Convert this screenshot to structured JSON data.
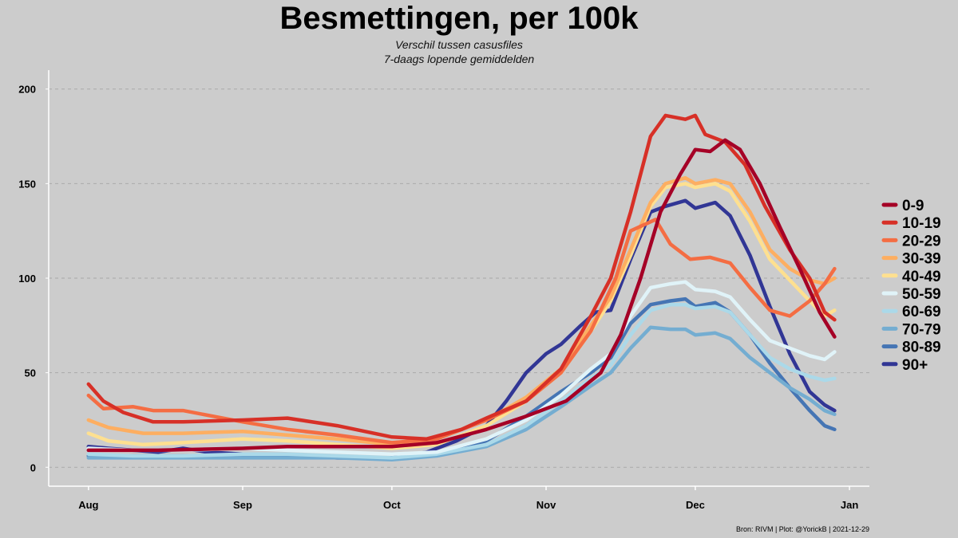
{
  "chart_data": {
    "type": "line",
    "title": "Besmettingen, per 100k",
    "subtitle": [
      "Verschil tussen casusfiles",
      "7-daags lopende gemiddelden"
    ],
    "caption": "Bron: RIVM | Plot: @YorickB  |  2021-12-29",
    "xlabel": "",
    "ylabel": "",
    "x_ticks": [
      {
        "label": "Aug",
        "date": "2021-08-01"
      },
      {
        "label": "Sep",
        "date": "2021-09-01"
      },
      {
        "label": "Oct",
        "date": "2021-10-01"
      },
      {
        "label": "Nov",
        "date": "2021-11-01"
      },
      {
        "label": "Dec",
        "date": "2021-12-01"
      },
      {
        "label": "Jan",
        "date": "2022-01-01"
      }
    ],
    "xlim": [
      "2021-07-24",
      "2022-01-05"
    ],
    "y_ticks": [
      0,
      50,
      100,
      150,
      200
    ],
    "ylim": [
      -10,
      210
    ],
    "grid": "horizontal dashed",
    "legend_position": "right",
    "series": [
      {
        "name": "0-9",
        "color": "#a50026",
        "points": [
          [
            "2021-08-01",
            9
          ],
          [
            "2021-08-15",
            9
          ],
          [
            "2021-09-01",
            10
          ],
          [
            "2021-09-10",
            11
          ],
          [
            "2021-09-20",
            11
          ],
          [
            "2021-10-01",
            11
          ],
          [
            "2021-10-10",
            13
          ],
          [
            "2021-10-20",
            20
          ],
          [
            "2021-10-28",
            27
          ],
          [
            "2021-11-05",
            35
          ],
          [
            "2021-11-12",
            50
          ],
          [
            "2021-11-16",
            70
          ],
          [
            "2021-11-20",
            100
          ],
          [
            "2021-11-24",
            135
          ],
          [
            "2021-11-28",
            155
          ],
          [
            "2021-12-01",
            168
          ],
          [
            "2021-12-04",
            167
          ],
          [
            "2021-12-07",
            173
          ],
          [
            "2021-12-10",
            168
          ],
          [
            "2021-12-14",
            150
          ],
          [
            "2021-12-18",
            127
          ],
          [
            "2021-12-22",
            105
          ],
          [
            "2021-12-26",
            82
          ],
          [
            "2021-12-29",
            69
          ]
        ]
      },
      {
        "name": "10-19",
        "color": "#d73027",
        "points": [
          [
            "2021-08-01",
            44
          ],
          [
            "2021-08-04",
            35
          ],
          [
            "2021-08-08",
            29
          ],
          [
            "2021-08-14",
            24
          ],
          [
            "2021-08-20",
            24
          ],
          [
            "2021-09-01",
            25
          ],
          [
            "2021-09-10",
            26
          ],
          [
            "2021-09-20",
            22
          ],
          [
            "2021-10-01",
            16
          ],
          [
            "2021-10-08",
            15
          ],
          [
            "2021-10-15",
            20
          ],
          [
            "2021-10-20",
            26
          ],
          [
            "2021-10-28",
            35
          ],
          [
            "2021-11-04",
            52
          ],
          [
            "2021-11-10",
            80
          ],
          [
            "2021-11-14",
            100
          ],
          [
            "2021-11-18",
            135
          ],
          [
            "2021-11-22",
            175
          ],
          [
            "2021-11-25",
            186
          ],
          [
            "2021-11-29",
            184
          ],
          [
            "2021-12-01",
            186
          ],
          [
            "2021-12-03",
            176
          ],
          [
            "2021-12-07",
            172
          ],
          [
            "2021-12-11",
            160
          ],
          [
            "2021-12-15",
            138
          ],
          [
            "2021-12-20",
            115
          ],
          [
            "2021-12-24",
            100
          ],
          [
            "2021-12-27",
            82
          ],
          [
            "2021-12-29",
            78
          ]
        ]
      },
      {
        "name": "20-29",
        "color": "#f46d43",
        "points": [
          [
            "2021-08-01",
            38
          ],
          [
            "2021-08-04",
            31
          ],
          [
            "2021-08-10",
            32
          ],
          [
            "2021-08-14",
            30
          ],
          [
            "2021-08-20",
            30
          ],
          [
            "2021-08-26",
            27
          ],
          [
            "2021-09-01",
            24
          ],
          [
            "2021-09-10",
            20
          ],
          [
            "2021-09-20",
            17
          ],
          [
            "2021-10-01",
            13
          ],
          [
            "2021-10-10",
            15
          ],
          [
            "2021-10-20",
            25
          ],
          [
            "2021-10-28",
            35
          ],
          [
            "2021-11-04",
            50
          ],
          [
            "2021-11-10",
            72
          ],
          [
            "2021-11-15",
            100
          ],
          [
            "2021-11-18",
            125
          ],
          [
            "2021-11-23",
            131
          ],
          [
            "2021-11-26",
            118
          ],
          [
            "2021-11-30",
            110
          ],
          [
            "2021-12-04",
            111
          ],
          [
            "2021-12-08",
            108
          ],
          [
            "2021-12-12",
            95
          ],
          [
            "2021-12-16",
            83
          ],
          [
            "2021-12-20",
            80
          ],
          [
            "2021-12-24",
            88
          ],
          [
            "2021-12-27",
            97
          ],
          [
            "2021-12-29",
            105
          ]
        ]
      },
      {
        "name": "30-39",
        "color": "#fdae61",
        "points": [
          [
            "2021-08-01",
            25
          ],
          [
            "2021-08-05",
            21
          ],
          [
            "2021-08-12",
            18
          ],
          [
            "2021-08-20",
            18
          ],
          [
            "2021-09-01",
            19
          ],
          [
            "2021-09-10",
            17
          ],
          [
            "2021-09-20",
            15
          ],
          [
            "2021-10-01",
            12
          ],
          [
            "2021-10-10",
            15
          ],
          [
            "2021-10-20",
            25
          ],
          [
            "2021-10-28",
            37
          ],
          [
            "2021-11-04",
            52
          ],
          [
            "2021-11-10",
            75
          ],
          [
            "2021-11-14",
            90
          ],
          [
            "2021-11-18",
            115
          ],
          [
            "2021-11-22",
            140
          ],
          [
            "2021-11-25",
            150
          ],
          [
            "2021-11-29",
            153
          ],
          [
            "2021-12-01",
            150
          ],
          [
            "2021-12-05",
            152
          ],
          [
            "2021-12-08",
            150
          ],
          [
            "2021-12-12",
            135
          ],
          [
            "2021-12-16",
            115
          ],
          [
            "2021-12-20",
            105
          ],
          [
            "2021-12-24",
            99
          ],
          [
            "2021-12-27",
            97
          ],
          [
            "2021-12-29",
            100
          ]
        ]
      },
      {
        "name": "40-49",
        "color": "#fee090",
        "points": [
          [
            "2021-08-01",
            18
          ],
          [
            "2021-08-05",
            14
          ],
          [
            "2021-08-12",
            12
          ],
          [
            "2021-08-20",
            13
          ],
          [
            "2021-09-01",
            15
          ],
          [
            "2021-09-10",
            14
          ],
          [
            "2021-09-20",
            12
          ],
          [
            "2021-10-01",
            10
          ],
          [
            "2021-10-10",
            12
          ],
          [
            "2021-10-20",
            22
          ],
          [
            "2021-10-28",
            35
          ],
          [
            "2021-11-04",
            50
          ],
          [
            "2021-11-10",
            72
          ],
          [
            "2021-11-14",
            88
          ],
          [
            "2021-11-18",
            112
          ],
          [
            "2021-11-22",
            138
          ],
          [
            "2021-11-25",
            148
          ],
          [
            "2021-11-29",
            150
          ],
          [
            "2021-12-01",
            148
          ],
          [
            "2021-12-05",
            150
          ],
          [
            "2021-12-08",
            146
          ],
          [
            "2021-12-12",
            130
          ],
          [
            "2021-12-16",
            110
          ],
          [
            "2021-12-20",
            99
          ],
          [
            "2021-12-24",
            88
          ],
          [
            "2021-12-27",
            80
          ],
          [
            "2021-12-29",
            83
          ]
        ]
      },
      {
        "name": "50-59",
        "color": "#e0f3f8",
        "points": [
          [
            "2021-08-01",
            10
          ],
          [
            "2021-08-10",
            9
          ],
          [
            "2021-08-20",
            9
          ],
          [
            "2021-09-01",
            10
          ],
          [
            "2021-09-10",
            9
          ],
          [
            "2021-09-20",
            8
          ],
          [
            "2021-10-01",
            7
          ],
          [
            "2021-10-10",
            8
          ],
          [
            "2021-10-20",
            15
          ],
          [
            "2021-10-28",
            25
          ],
          [
            "2021-11-04",
            38
          ],
          [
            "2021-11-10",
            52
          ],
          [
            "2021-11-14",
            60
          ],
          [
            "2021-11-18",
            80
          ],
          [
            "2021-11-22",
            95
          ],
          [
            "2021-11-26",
            97
          ],
          [
            "2021-11-29",
            98
          ],
          [
            "2021-12-01",
            94
          ],
          [
            "2021-12-05",
            93
          ],
          [
            "2021-12-08",
            90
          ],
          [
            "2021-12-12",
            78
          ],
          [
            "2021-12-16",
            67
          ],
          [
            "2021-12-20",
            63
          ],
          [
            "2021-12-24",
            59
          ],
          [
            "2021-12-27",
            57
          ],
          [
            "2021-12-29",
            61
          ]
        ]
      },
      {
        "name": "60-69",
        "color": "#abd9e9",
        "points": [
          [
            "2021-08-01",
            7
          ],
          [
            "2021-08-10",
            6
          ],
          [
            "2021-08-20",
            6
          ],
          [
            "2021-09-01",
            7
          ],
          [
            "2021-09-10",
            7
          ],
          [
            "2021-09-20",
            6
          ],
          [
            "2021-10-01",
            5
          ],
          [
            "2021-10-10",
            7
          ],
          [
            "2021-10-20",
            12
          ],
          [
            "2021-10-28",
            22
          ],
          [
            "2021-11-04",
            35
          ],
          [
            "2021-11-10",
            47
          ],
          [
            "2021-11-14",
            54
          ],
          [
            "2021-11-18",
            70
          ],
          [
            "2021-11-22",
            83
          ],
          [
            "2021-11-26",
            86
          ],
          [
            "2021-11-29",
            86
          ],
          [
            "2021-12-01",
            84
          ],
          [
            "2021-12-05",
            85
          ],
          [
            "2021-12-08",
            82
          ],
          [
            "2021-12-12",
            70
          ],
          [
            "2021-12-16",
            58
          ],
          [
            "2021-12-20",
            52
          ],
          [
            "2021-12-24",
            48
          ],
          [
            "2021-12-27",
            46
          ],
          [
            "2021-12-29",
            47
          ]
        ]
      },
      {
        "name": "70-79",
        "color": "#74add1",
        "points": [
          [
            "2021-08-01",
            5
          ],
          [
            "2021-08-10",
            5
          ],
          [
            "2021-08-20",
            5
          ],
          [
            "2021-09-01",
            5
          ],
          [
            "2021-09-10",
            5
          ],
          [
            "2021-09-20",
            5
          ],
          [
            "2021-10-01",
            4
          ],
          [
            "2021-10-10",
            6
          ],
          [
            "2021-10-20",
            11
          ],
          [
            "2021-10-28",
            20
          ],
          [
            "2021-11-04",
            32
          ],
          [
            "2021-11-10",
            43
          ],
          [
            "2021-11-14",
            50
          ],
          [
            "2021-11-18",
            63
          ],
          [
            "2021-11-22",
            74
          ],
          [
            "2021-11-26",
            73
          ],
          [
            "2021-11-29",
            73
          ],
          [
            "2021-12-01",
            70
          ],
          [
            "2021-12-05",
            71
          ],
          [
            "2021-12-08",
            68
          ],
          [
            "2021-12-12",
            58
          ],
          [
            "2021-12-16",
            50
          ],
          [
            "2021-12-20",
            42
          ],
          [
            "2021-12-24",
            36
          ],
          [
            "2021-12-27",
            30
          ],
          [
            "2021-12-29",
            28
          ]
        ]
      },
      {
        "name": "80-89",
        "color": "#4575b4",
        "points": [
          [
            "2021-08-01",
            6
          ],
          [
            "2021-08-10",
            6
          ],
          [
            "2021-08-20",
            6
          ],
          [
            "2021-09-01",
            6
          ],
          [
            "2021-09-10",
            6
          ],
          [
            "2021-09-20",
            5
          ],
          [
            "2021-10-01",
            5
          ],
          [
            "2021-10-10",
            7
          ],
          [
            "2021-10-20",
            14
          ],
          [
            "2021-10-28",
            27
          ],
          [
            "2021-11-04",
            40
          ],
          [
            "2021-11-10",
            50
          ],
          [
            "2021-11-14",
            58
          ],
          [
            "2021-11-18",
            76
          ],
          [
            "2021-11-22",
            86
          ],
          [
            "2021-11-26",
            88
          ],
          [
            "2021-11-29",
            89
          ],
          [
            "2021-12-01",
            85
          ],
          [
            "2021-12-05",
            87
          ],
          [
            "2021-12-08",
            82
          ],
          [
            "2021-12-12",
            70
          ],
          [
            "2021-12-16",
            55
          ],
          [
            "2021-12-20",
            42
          ],
          [
            "2021-12-24",
            30
          ],
          [
            "2021-12-27",
            22
          ],
          [
            "2021-12-29",
            20
          ]
        ]
      },
      {
        "name": "90+",
        "color": "#313695",
        "points": [
          [
            "2021-08-01",
            11
          ],
          [
            "2021-08-05",
            10
          ],
          [
            "2021-08-10",
            9
          ],
          [
            "2021-08-15",
            8
          ],
          [
            "2021-08-20",
            10
          ],
          [
            "2021-08-25",
            8
          ],
          [
            "2021-09-01",
            7
          ],
          [
            "2021-09-10",
            6
          ],
          [
            "2021-09-20",
            5
          ],
          [
            "2021-10-01",
            5
          ],
          [
            "2021-10-08",
            8
          ],
          [
            "2021-10-14",
            14
          ],
          [
            "2021-10-20",
            22
          ],
          [
            "2021-10-24",
            35
          ],
          [
            "2021-10-28",
            50
          ],
          [
            "2021-11-01",
            60
          ],
          [
            "2021-11-04",
            65
          ],
          [
            "2021-11-08",
            75
          ],
          [
            "2021-11-11",
            82
          ],
          [
            "2021-11-14",
            83
          ],
          [
            "2021-11-18",
            110
          ],
          [
            "2021-11-22",
            135
          ],
          [
            "2021-11-25",
            138
          ],
          [
            "2021-11-29",
            141
          ],
          [
            "2021-12-01",
            137
          ],
          [
            "2021-12-05",
            140
          ],
          [
            "2021-12-08",
            133
          ],
          [
            "2021-12-12",
            112
          ],
          [
            "2021-12-16",
            85
          ],
          [
            "2021-12-20",
            60
          ],
          [
            "2021-12-24",
            40
          ],
          [
            "2021-12-27",
            33
          ],
          [
            "2021-12-29",
            30
          ]
        ]
      }
    ]
  }
}
